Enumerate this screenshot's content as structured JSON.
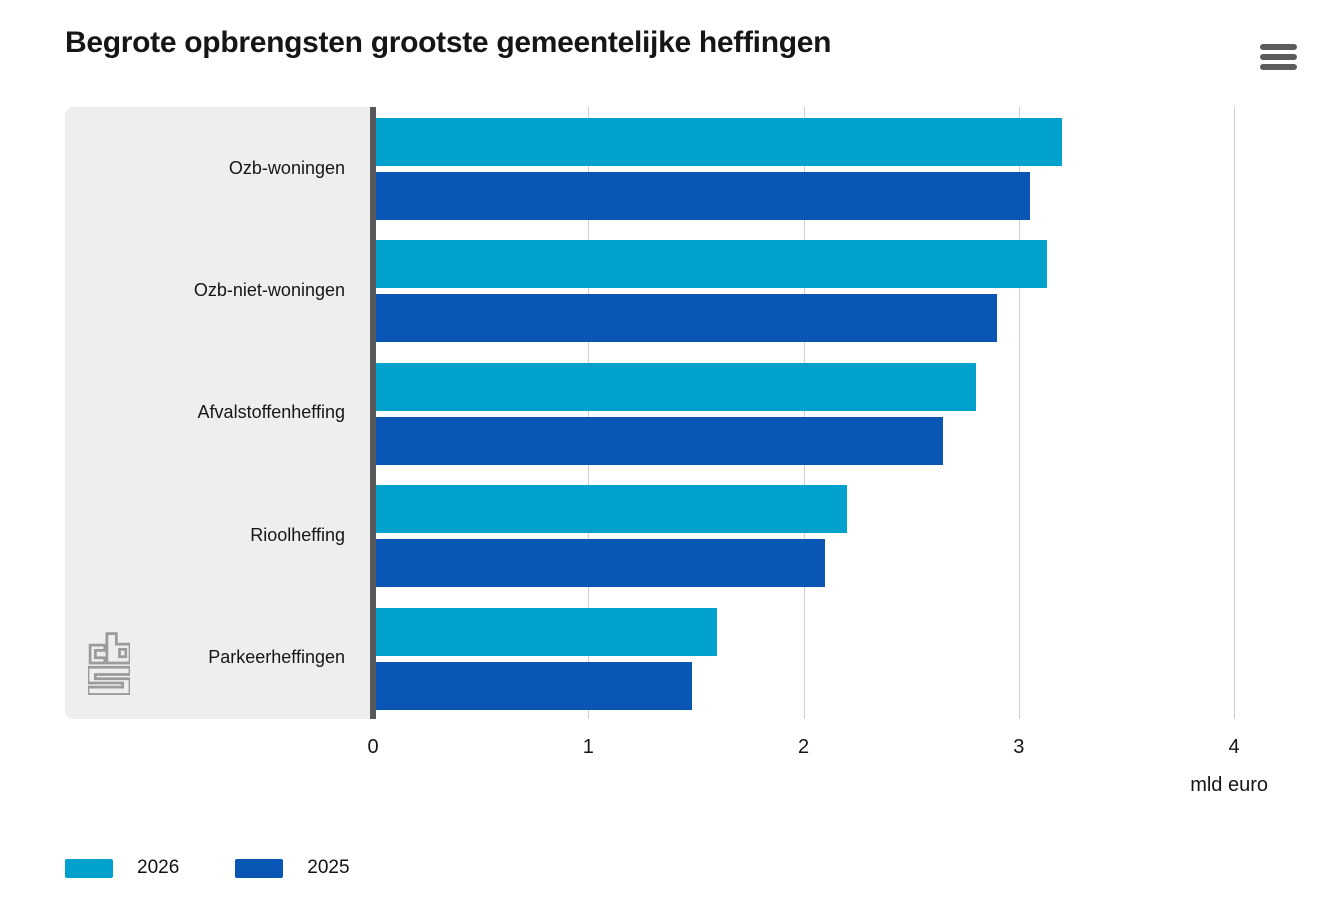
{
  "header": {
    "title": "Begrote opbrengsten grootste gemeentelijke heffingen",
    "menu_icon": "hamburger-menu"
  },
  "branding": {
    "logo_icon": "cbs-logo",
    "logo_color": "#9b9b9b"
  },
  "colors": {
    "series_2026": "#00a1cd",
    "series_2025": "#0a56b4",
    "panel_bg": "#eeeeee",
    "gridline": "#cfcfcf",
    "zero_line": "#58585a"
  },
  "x_axis": {
    "ticks": [
      "0",
      "1",
      "2",
      "3",
      "4"
    ],
    "unit_label": "mld euro"
  },
  "legend": [
    {
      "label": "2026",
      "color": "#00a1cd"
    },
    {
      "label": "2025",
      "color": "#0a56b4"
    }
  ],
  "chart_data": {
    "type": "bar",
    "orientation": "horizontal",
    "title": "Begrote opbrengsten grootste gemeentelijke heffingen",
    "categories": [
      "Ozb-woningen",
      "Ozb-niet-woningen",
      "Afvalstoffenheffing",
      "Rioolheffing",
      "Parkeerheffingen"
    ],
    "series": [
      {
        "name": "2026",
        "color": "#00a1cd",
        "values": [
          3.2,
          3.13,
          2.8,
          2.2,
          1.6
        ]
      },
      {
        "name": "2025",
        "color": "#0a56b4",
        "values": [
          3.05,
          2.9,
          2.65,
          2.1,
          1.48
        ]
      }
    ],
    "xlabel": "mld euro",
    "xlim": [
      0,
      4
    ],
    "grid_ticks": [
      1,
      2,
      3,
      4
    ],
    "grid": "vertical",
    "legend_position": "bottom-left"
  }
}
